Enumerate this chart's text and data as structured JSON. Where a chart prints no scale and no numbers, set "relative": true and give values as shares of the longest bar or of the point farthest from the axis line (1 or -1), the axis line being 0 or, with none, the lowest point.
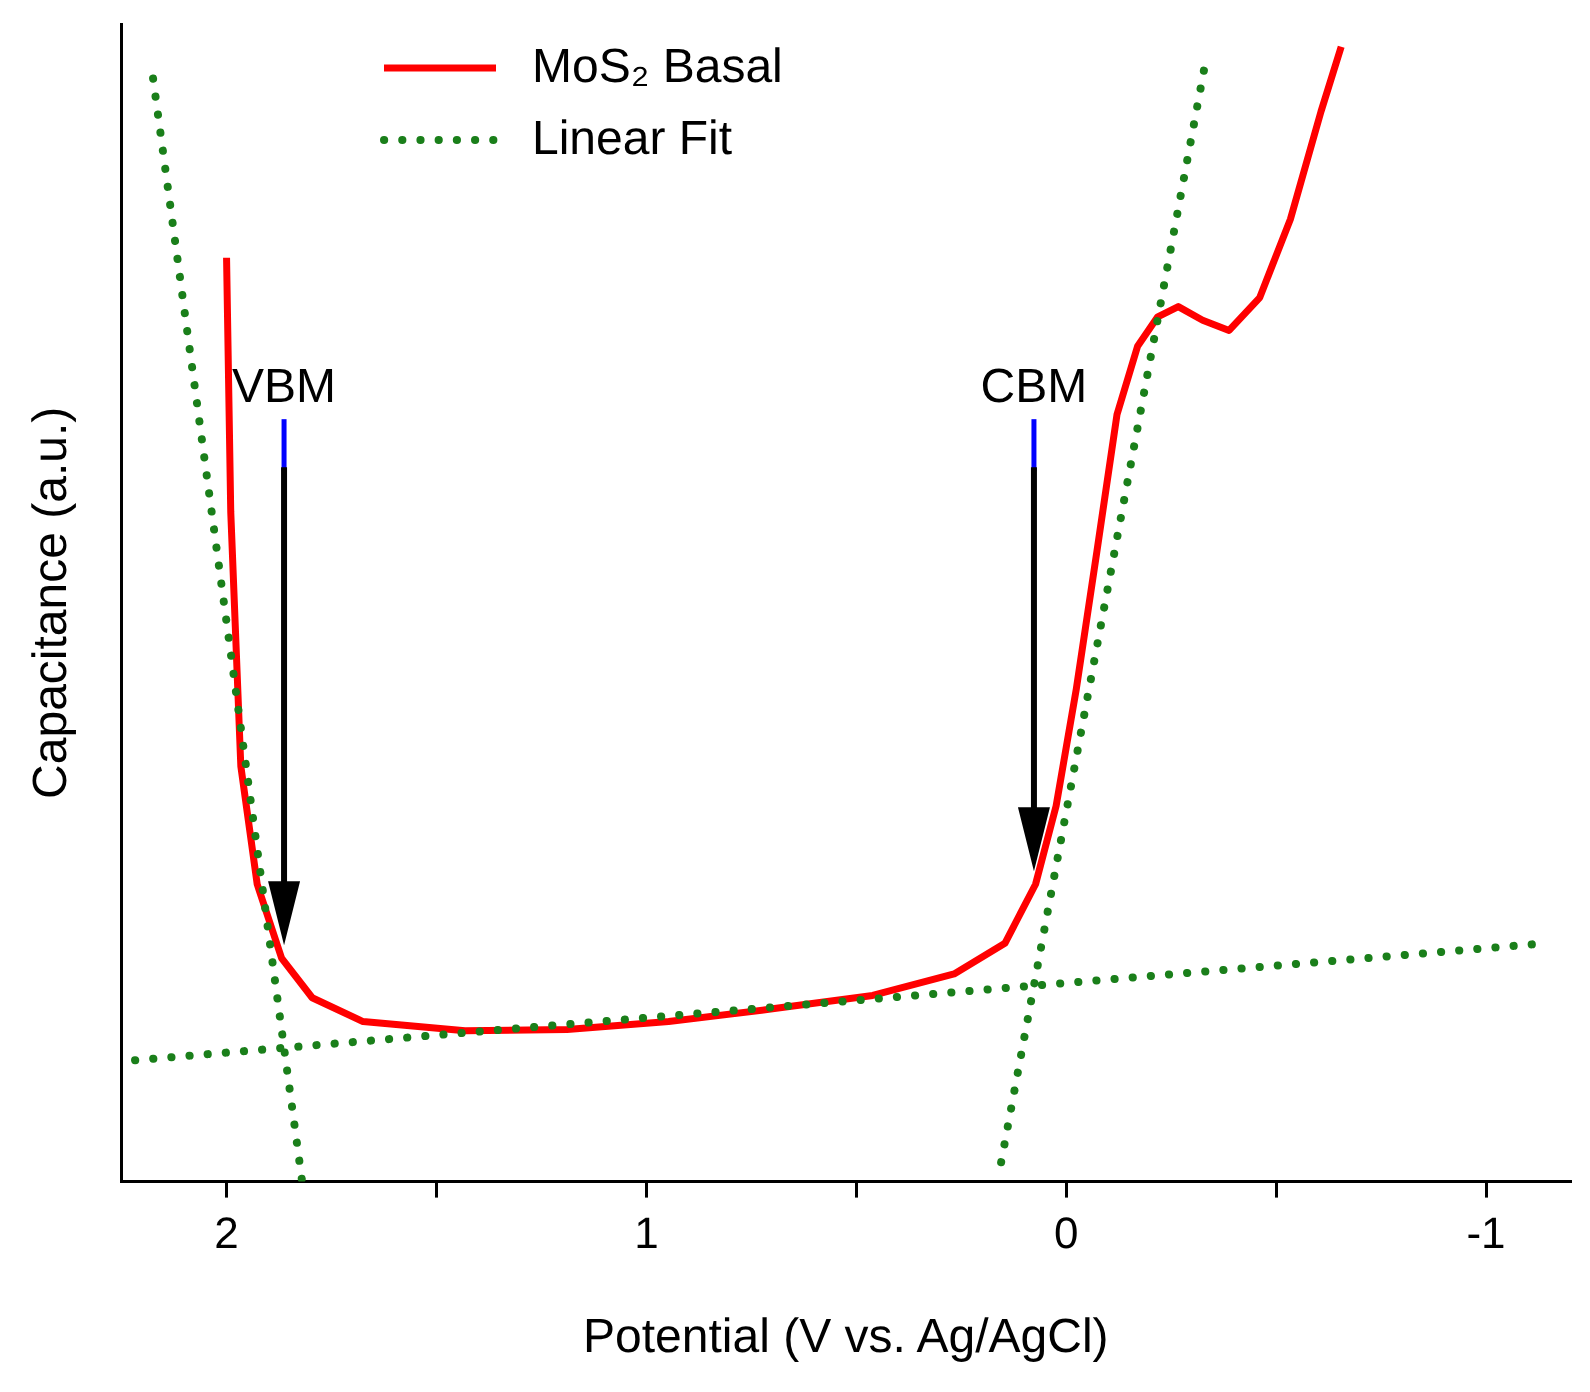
{
  "chart_data": {
    "type": "line",
    "xlabel": "Potential (V vs. Ag/AgCl)",
    "ylabel": "Capacitance (a.u.)",
    "relative": true,
    "xlim": [
      2.25,
      -1.2
    ],
    "xticks": [
      2,
      {
        "value": 1.5,
        "label": null
      },
      1,
      {
        "value": 0.5,
        "label": null
      },
      0,
      {
        "value": -0.5,
        "label": null
      },
      {
        "value": -1,
        "label": "-1"
      }
    ],
    "grid": false,
    "legend": "top left",
    "marker": "none",
    "series": [
      {
        "name": "Linear Fit",
        "color": "#1a7f1a",
        "line_style": "dotted",
        "x": [
          2.175,
          1.82,
          null,
          2.218,
          -1.141,
          null,
          0.155,
          -0.33
        ],
        "values": [
          0.972,
          0,
          null,
          0.107,
          0.21,
          null,
          0.017,
          0.983
        ]
      },
      {
        "name": "MoS₂ Basal",
        "color": "#ff0000",
        "line_style": "solid",
        "x": [
          2.0,
          1.99,
          1.966,
          1.927,
          1.869,
          1.796,
          1.675,
          1.432,
          1.189,
          0.947,
          0.704,
          0.461,
          0.267,
          0.146,
          0.073,
          0.024,
          -0.024,
          -0.073,
          -0.121,
          -0.17,
          -0.218,
          -0.267,
          -0.325,
          -0.388,
          -0.461,
          -0.534,
          -0.607,
          -0.655
        ],
        "values": [
          0.814,
          0.59,
          0.366,
          0.262,
          0.197,
          0.162,
          0.141,
          0.133,
          0.134,
          0.141,
          0.152,
          0.164,
          0.183,
          0.21,
          0.262,
          0.331,
          0.434,
          0.555,
          0.676,
          0.736,
          0.762,
          0.771,
          0.759,
          0.75,
          0.779,
          0.848,
          0.943,
          1.0
        ]
      }
    ],
    "annotations": [
      "VBM",
      "CBM"
    ]
  }
}
